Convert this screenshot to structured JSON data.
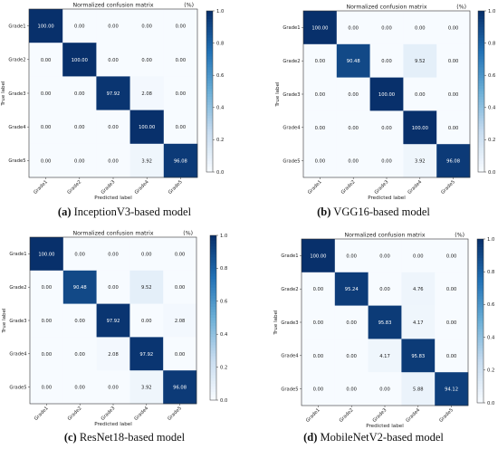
{
  "figure": {
    "captions": [
      {
        "letter": "(a)",
        "text": " InceptionV3-based model"
      },
      {
        "letter": "(b)",
        "text": " VGG16-based model"
      },
      {
        "letter": "(c)",
        "text": " ResNet18-based model"
      },
      {
        "letter": "(d)",
        "text": " MobileNetV2-based model"
      }
    ]
  },
  "colors": {
    "cmap_low": "#f7fbff",
    "cmap_high": "#08306b",
    "text_dark": "#222222",
    "text_light": "#ffffff"
  },
  "chart_data": [
    {
      "type": "heatmap",
      "title": "Normalized confusion matrix",
      "unit_label": "(%)",
      "xlabel": "Predicted label",
      "ylabel": "True label",
      "x_categories": [
        "Grade1",
        "Grade2",
        "Grade3",
        "Grade4",
        "Grade5"
      ],
      "y_categories": [
        "Grade1",
        "Grade2",
        "Grade3",
        "Grade4",
        "Grade5"
      ],
      "values": [
        [
          100,
          0,
          0,
          0,
          0
        ],
        [
          0,
          100,
          0,
          0,
          0
        ],
        [
          0,
          0,
          97.92,
          2.08,
          0
        ],
        [
          0,
          0,
          0,
          100,
          0
        ],
        [
          0,
          0,
          0,
          3.92,
          96.08
        ]
      ],
      "colorbar": {
        "range": [
          0.0,
          1.0
        ],
        "ticks": [
          "0.0",
          "0.2",
          "0.4",
          "0.6",
          "0.8",
          "1.0"
        ]
      }
    },
    {
      "type": "heatmap",
      "title": "Normalized confusion matrix",
      "unit_label": "(%)",
      "xlabel": "Predicted label",
      "ylabel": "True label",
      "x_categories": [
        "Grade1",
        "Grade2",
        "Grade3",
        "Grade4",
        "Grade5"
      ],
      "y_categories": [
        "Grade1",
        "Grade2",
        "Grade3",
        "Grade4",
        "Grade5"
      ],
      "values": [
        [
          100,
          0,
          0,
          0,
          0
        ],
        [
          0,
          90.48,
          0,
          9.52,
          0
        ],
        [
          0,
          0,
          100,
          0,
          0
        ],
        [
          0,
          0,
          0,
          100,
          0
        ],
        [
          0,
          0,
          0,
          3.92,
          96.08
        ]
      ],
      "colorbar": {
        "range": [
          0.0,
          1.0
        ],
        "ticks": [
          "0.0",
          "0.2",
          "0.4",
          "0.6",
          "0.8",
          "1.0"
        ]
      }
    },
    {
      "type": "heatmap",
      "title": "Normalized confusion matrix",
      "unit_label": "(%)",
      "xlabel": "Predicted label",
      "ylabel": "True label",
      "x_categories": [
        "Grade1",
        "Grade2",
        "Grade3",
        "Grade4",
        "Grade5"
      ],
      "y_categories": [
        "Grade1",
        "Grade2",
        "Grade3",
        "Grade4",
        "Grade5"
      ],
      "values": [
        [
          100,
          0,
          0,
          0,
          0
        ],
        [
          0,
          90.48,
          0,
          9.52,
          0
        ],
        [
          0,
          0,
          97.92,
          0,
          2.08
        ],
        [
          0,
          0,
          2.08,
          97.92,
          0
        ],
        [
          0,
          0,
          0,
          3.92,
          96.08
        ]
      ],
      "colorbar": {
        "range": [
          0.0,
          1.0
        ],
        "ticks": [
          "0.0",
          "0.2",
          "0.4",
          "0.6",
          "0.8",
          "1.0"
        ]
      }
    },
    {
      "type": "heatmap",
      "title": "Normalized confusion matrix",
      "unit_label": "(%)",
      "xlabel": "Predicted label",
      "ylabel": "True label",
      "x_categories": [
        "Grade1",
        "Grade2",
        "Grade3",
        "Grade4",
        "Grade5"
      ],
      "y_categories": [
        "Grade1",
        "Grade2",
        "Grade3",
        "Grade4",
        "Grade5"
      ],
      "values": [
        [
          100,
          0,
          0,
          0,
          0
        ],
        [
          0,
          95.24,
          0,
          4.76,
          0
        ],
        [
          0,
          0,
          95.83,
          4.17,
          0
        ],
        [
          0,
          0,
          4.17,
          95.83,
          0
        ],
        [
          0,
          0,
          0,
          5.88,
          94.12
        ]
      ],
      "colorbar": {
        "range": [
          0.0,
          1.0
        ],
        "ticks": [
          "0.0",
          "0.2",
          "0.4",
          "0.6",
          "0.8",
          "1.0"
        ]
      }
    }
  ]
}
